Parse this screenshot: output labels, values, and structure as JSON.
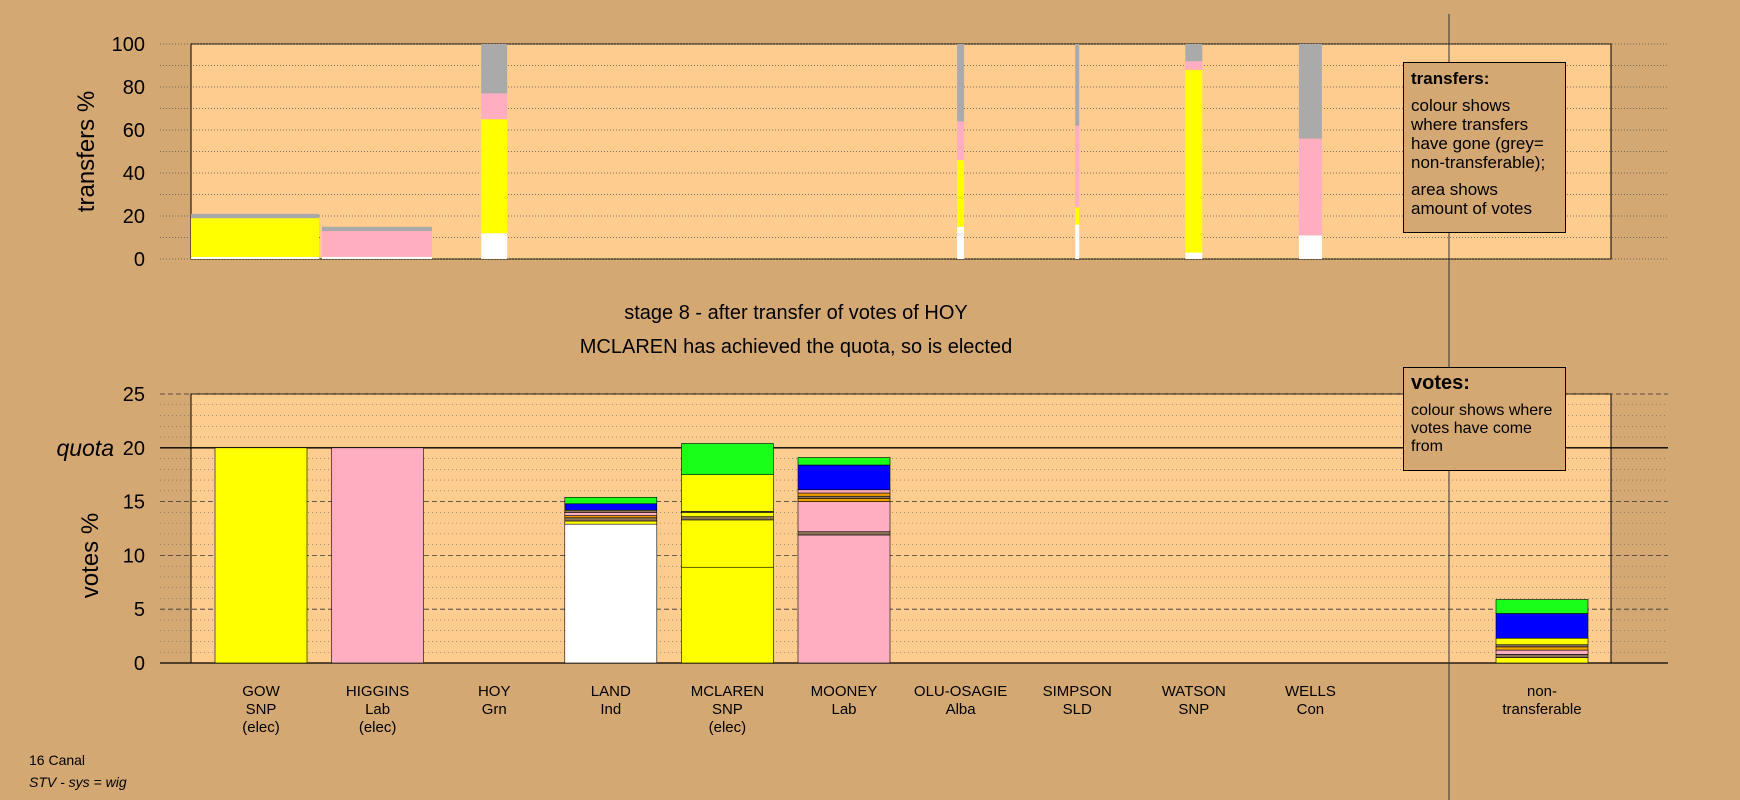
{
  "title": {
    "line1": "stage 8 - after transfer of votes of HOY",
    "line2": "MCLAREN has achieved the quota, so is elected"
  },
  "footer": {
    "ward": "16 Canal",
    "system": "STV - sys = wig"
  },
  "legend_transfers": {
    "title": "transfers:",
    "p1": "colour shows where transfers have gone (grey= non-transferable);",
    "p2": "area shows amount of votes"
  },
  "legend_votes": {
    "title": "votes:",
    "p1": "colour shows where votes have come from"
  },
  "colors": {
    "background": "#d4a872",
    "plot": "#ffcc8f",
    "SNP": "#ffff00",
    "Lab": "#ffadc0",
    "Grn": "#1aff1a",
    "Ind": "#ffffff",
    "Alba": "#0000ff",
    "SLD": "#f0a000",
    "Con": "#8b7355",
    "nontransferable": "#aaaaaa"
  },
  "chart_data": [
    {
      "type": "bar",
      "name": "transfers",
      "ylabel": "transfers %",
      "ylim": [
        0,
        100
      ],
      "yticks": [
        0,
        20,
        40,
        60,
        80,
        100
      ],
      "grid": true,
      "note": "Stacked bars, bottom to top; width proportional to transferred vote amount.",
      "bars": [
        {
          "candidate": "GOW",
          "segments": [
            {
              "party": "Ind",
              "value": 1
            },
            {
              "party": "SNP",
              "value": 18
            },
            {
              "party": "nontransferable",
              "value": 2
            }
          ]
        },
        {
          "candidate": "HIGGINS",
          "segments": [
            {
              "party": "Ind",
              "value": 1
            },
            {
              "party": "Lab",
              "value": 12
            },
            {
              "party": "nontransferable",
              "value": 2
            }
          ]
        },
        {
          "candidate": "HOY",
          "segments": [
            {
              "party": "Ind",
              "value": 12
            },
            {
              "party": "SNP",
              "value": 53
            },
            {
              "party": "Lab",
              "value": 12
            },
            {
              "party": "nontransferable",
              "value": 23
            }
          ]
        },
        {
          "candidate": "OLU-OSAGIE",
          "segments": [
            {
              "party": "Ind",
              "value": 15
            },
            {
              "party": "SNP",
              "value": 31
            },
            {
              "party": "Lab",
              "value": 18
            },
            {
              "party": "nontransferable",
              "value": 36
            }
          ]
        },
        {
          "candidate": "SIMPSON",
          "segments": [
            {
              "party": "Ind",
              "value": 16
            },
            {
              "party": "SNP",
              "value": 8
            },
            {
              "party": "Lab",
              "value": 38
            },
            {
              "party": "nontransferable",
              "value": 38
            }
          ]
        },
        {
          "candidate": "WATSON",
          "segments": [
            {
              "party": "Ind",
              "value": 3
            },
            {
              "party": "SNP",
              "value": 85
            },
            {
              "party": "Lab",
              "value": 4
            },
            {
              "party": "nontransferable",
              "value": 8
            }
          ]
        },
        {
          "candidate": "WELLS",
          "segments": [
            {
              "party": "Ind",
              "value": 11
            },
            {
              "party": "Lab",
              "value": 45
            },
            {
              "party": "nontransferable",
              "value": 44
            }
          ]
        }
      ]
    },
    {
      "type": "bar",
      "name": "votes",
      "ylabel": "votes %",
      "ylim": [
        0,
        25
      ],
      "yticks": [
        0,
        5,
        10,
        15,
        20,
        25
      ],
      "quota": 20,
      "quota_label": "quota",
      "grid": true,
      "candidates": [
        {
          "name": "GOW",
          "party": "SNP",
          "status": "(elec)",
          "segments": [
            {
              "party": "SNP",
              "value": 20
            }
          ]
        },
        {
          "name": "HIGGINS",
          "party": "Lab",
          "status": "(elec)",
          "segments": [
            {
              "party": "Lab",
              "value": 20
            }
          ]
        },
        {
          "name": "HOY",
          "party": "Grn",
          "status": "",
          "segments": []
        },
        {
          "name": "LAND",
          "party": "Ind",
          "status": "",
          "segments": [
            {
              "party": "Ind",
              "value": 12.9
            },
            {
              "party": "SNP",
              "value": 0.3
            },
            {
              "party": "Con",
              "value": 0.3
            },
            {
              "party": "SLD",
              "value": 0.2
            },
            {
              "party": "Lab",
              "value": 0.3
            },
            {
              "party": "Con",
              "value": 0.2
            },
            {
              "party": "Alba",
              "value": 0.6
            },
            {
              "party": "Grn",
              "value": 0.6
            }
          ]
        },
        {
          "name": "MCLAREN",
          "party": "SNP",
          "status": "(elec)",
          "segments": [
            {
              "party": "SNP",
              "value": 8.9
            },
            {
              "party": "SNP",
              "value": 4.4
            },
            {
              "party": "Con",
              "value": 0.3
            },
            {
              "party": "SNP",
              "value": 0.4
            },
            {
              "party": "Con",
              "value": 0.1
            },
            {
              "party": "SNP",
              "value": 3.4
            },
            {
              "party": "Grn",
              "value": 2.9
            }
          ]
        },
        {
          "name": "MOONEY",
          "party": "Lab",
          "status": "",
          "segments": [
            {
              "party": "Lab",
              "value": 11.9
            },
            {
              "party": "Con",
              "value": 0.3
            },
            {
              "party": "Lab",
              "value": 2.8
            },
            {
              "party": "SLD",
              "value": 0.3
            },
            {
              "party": "Con",
              "value": 0.2
            },
            {
              "party": "SLD",
              "value": 0.3
            },
            {
              "party": "Lab",
              "value": 0.3
            },
            {
              "party": "Alba",
              "value": 2.3
            },
            {
              "party": "Grn",
              "value": 0.7
            }
          ]
        },
        {
          "name": "OLU-OSAGIE",
          "party": "Alba",
          "status": "",
          "segments": []
        },
        {
          "name": "SIMPSON",
          "party": "SLD",
          "status": "",
          "segments": []
        },
        {
          "name": "WATSON",
          "party": "SNP",
          "status": "",
          "segments": []
        },
        {
          "name": "WELLS",
          "party": "Con",
          "status": "",
          "segments": []
        }
      ],
      "nontransferable": {
        "label1": "non-",
        "label2": "transferable",
        "segments": [
          {
            "party": "SNP",
            "value": 0.5
          },
          {
            "party": "Con",
            "value": 0.3
          },
          {
            "party": "Lab",
            "value": 0.4
          },
          {
            "party": "SLD",
            "value": 0.3
          },
          {
            "party": "Con",
            "value": 0.2
          },
          {
            "party": "SNP",
            "value": 0.6
          },
          {
            "party": "Alba",
            "value": 2.3
          },
          {
            "party": "Grn",
            "value": 1.3
          }
        ]
      }
    }
  ]
}
